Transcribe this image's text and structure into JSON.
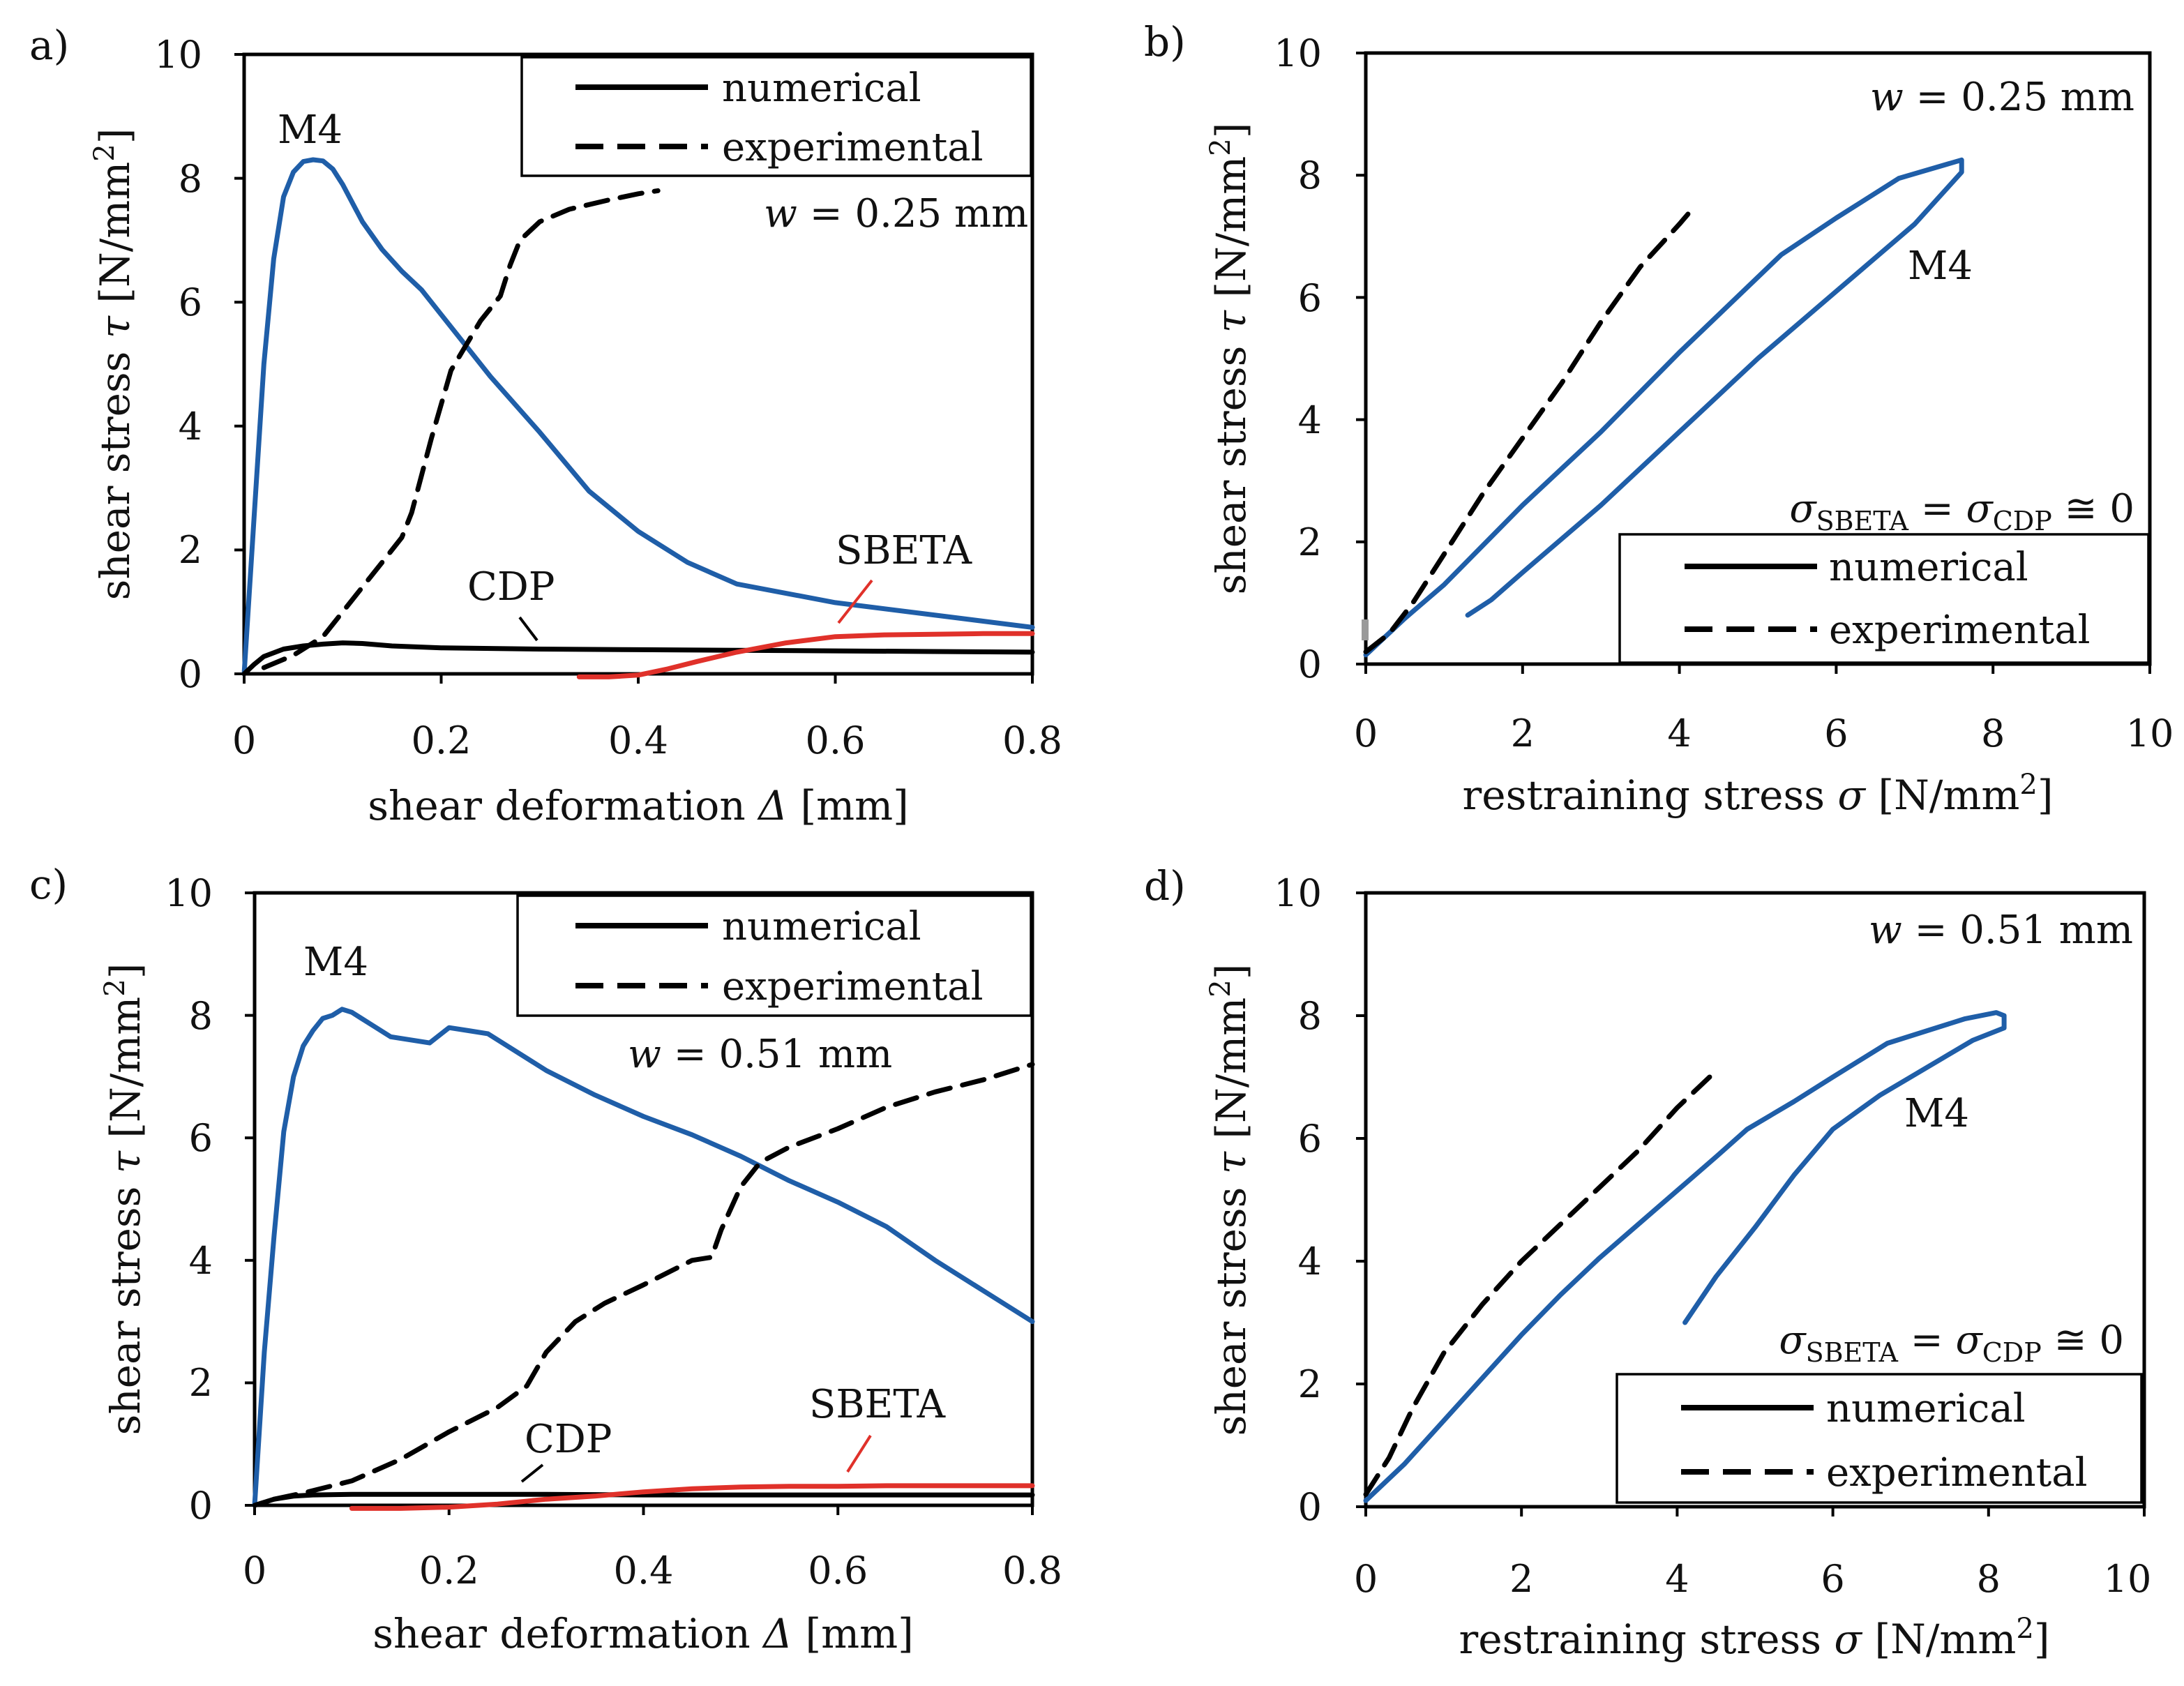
{
  "colors": {
    "numerical_m4": "#1f5ea8",
    "sbeta": "#e0312a",
    "cdp": "#000000",
    "experimental": "#000000"
  },
  "chart_data": [
    {
      "id": "a",
      "panel_label": "a)",
      "type": "line",
      "xlabel_main": "shear deformation",
      "xlabel_symbol": "Δ",
      "xlabel_unit": "[mm]",
      "ylabel_main": "shear stress",
      "ylabel_symbol": "τ",
      "ylabel_unit": "[N/mm",
      "ylabel_unit_sup": "2",
      "ylabel_unit_close": "]",
      "xlim": [
        0,
        0.8
      ],
      "ylim": [
        0,
        10
      ],
      "xticks": [
        0,
        0.2,
        0.4,
        0.6,
        0.8
      ],
      "xtick_labels": [
        "0",
        "0.2",
        "0.4",
        "0.6",
        "0.8"
      ],
      "yticks": [
        0,
        2,
        4,
        6,
        8,
        10
      ],
      "ytick_labels": [
        "0",
        "2",
        "4",
        "6",
        "8",
        "10"
      ],
      "legend": {
        "position": "top-right",
        "entries": [
          {
            "label": "numerical",
            "style": "solid"
          },
          {
            "label": "experimental",
            "style": "dashed"
          }
        ]
      },
      "annotations": {
        "w_symbol": "w",
        "w_text": "= 0.25 mm",
        "m4": "M4",
        "cdp": "CDP",
        "sbeta": "SBETA"
      },
      "series": [
        {
          "name": "M4 numerical",
          "style": "solid",
          "color": "#1f5ea8",
          "x": [
            0,
            0.01,
            0.02,
            0.03,
            0.04,
            0.05,
            0.06,
            0.07,
            0.08,
            0.09,
            0.1,
            0.12,
            0.14,
            0.16,
            0.18,
            0.2,
            0.25,
            0.3,
            0.35,
            0.4,
            0.45,
            0.5,
            0.6,
            0.7,
            0.8
          ],
          "y": [
            0,
            2.5,
            5.0,
            6.7,
            7.7,
            8.1,
            8.27,
            8.3,
            8.28,
            8.15,
            7.9,
            7.3,
            6.85,
            6.5,
            6.2,
            5.8,
            4.8,
            3.9,
            2.95,
            2.3,
            1.8,
            1.45,
            1.15,
            0.95,
            0.75
          ]
        },
        {
          "name": "experimental",
          "style": "dashed",
          "color": "#000000",
          "x": [
            0.02,
            0.05,
            0.08,
            0.11,
            0.14,
            0.16,
            0.17,
            0.19,
            0.21,
            0.24,
            0.26,
            0.27,
            0.28,
            0.3,
            0.33,
            0.37,
            0.4,
            0.42
          ],
          "y": [
            0.1,
            0.3,
            0.6,
            1.2,
            1.8,
            2.2,
            2.6,
            3.8,
            4.9,
            5.7,
            6.1,
            6.6,
            7.0,
            7.3,
            7.5,
            7.65,
            7.75,
            7.8
          ]
        },
        {
          "name": "CDP numerical",
          "style": "solid",
          "color": "#000000",
          "x": [
            0,
            0.01,
            0.02,
            0.04,
            0.06,
            0.08,
            0.1,
            0.12,
            0.15,
            0.2,
            0.3,
            0.4,
            0.5,
            0.6,
            0.7,
            0.8
          ],
          "y": [
            0,
            0.15,
            0.28,
            0.4,
            0.45,
            0.48,
            0.5,
            0.49,
            0.45,
            0.42,
            0.4,
            0.39,
            0.38,
            0.37,
            0.36,
            0.35
          ]
        },
        {
          "name": "SBETA numerical",
          "style": "solid",
          "color": "#e0312a",
          "x": [
            0.34,
            0.37,
            0.4,
            0.43,
            0.46,
            0.5,
            0.55,
            0.6,
            0.65,
            0.7,
            0.75,
            0.8
          ],
          "y": [
            -0.05,
            -0.05,
            -0.02,
            0.08,
            0.2,
            0.35,
            0.5,
            0.6,
            0.63,
            0.64,
            0.65,
            0.65
          ]
        }
      ]
    },
    {
      "id": "b",
      "panel_label": "b)",
      "type": "line",
      "xlabel_main": "restraining stress",
      "xlabel_symbol": "σ",
      "xlabel_unit": "[N/mm",
      "xlabel_unit_sup": "2",
      "xlabel_unit_close": "]",
      "ylabel_main": "shear stress",
      "ylabel_symbol": "τ",
      "ylabel_unit": "[N/mm",
      "ylabel_unit_sup": "2",
      "ylabel_unit_close": "]",
      "xlim": [
        0,
        10
      ],
      "ylim": [
        0,
        10
      ],
      "xticks": [
        0,
        2,
        4,
        6,
        8,
        10
      ],
      "xtick_labels": [
        "0",
        "2",
        "4",
        "6",
        "8",
        "10"
      ],
      "yticks": [
        0,
        2,
        4,
        6,
        8,
        10
      ],
      "ytick_labels": [
        "0",
        "2",
        "4",
        "6",
        "8",
        "10"
      ],
      "legend": {
        "position": "bottom-right",
        "entries": [
          {
            "label": "numerical",
            "style": "solid"
          },
          {
            "label": "experimental",
            "style": "dashed"
          }
        ]
      },
      "annotations": {
        "w_symbol": "w",
        "w_text": "= 0.25 mm",
        "m4": "M4",
        "sigma_eq": "σ",
        "sigma_sub1": "SBETA",
        "sigma_eq2": " = σ",
        "sigma_sub2": "CDP",
        "sigma_tail": " ≅ 0"
      },
      "series": [
        {
          "name": "M4 numerical",
          "style": "solid",
          "color": "#1f5ea8",
          "x": [
            0,
            0.5,
            1.0,
            2.0,
            3.0,
            4.0,
            5.3,
            6.0,
            6.8,
            7.6,
            7.6,
            7.0,
            6.0,
            5.0,
            4.0,
            3.0,
            2.0,
            1.6,
            1.3
          ],
          "y": [
            0.15,
            0.75,
            1.3,
            2.6,
            3.8,
            5.1,
            6.7,
            7.3,
            7.95,
            8.25,
            8.05,
            7.2,
            6.1,
            5.0,
            3.8,
            2.6,
            1.5,
            1.05,
            0.8
          ]
        },
        {
          "name": "experimental",
          "style": "dashed",
          "color": "#000000",
          "x": [
            0,
            0.3,
            0.6,
            1.0,
            1.5,
            2.0,
            2.5,
            3.0,
            3.5,
            4.0,
            4.2
          ],
          "y": [
            0.2,
            0.5,
            1.0,
            1.8,
            2.8,
            3.7,
            4.6,
            5.6,
            6.5,
            7.2,
            7.5
          ]
        }
      ]
    },
    {
      "id": "c",
      "panel_label": "c)",
      "type": "line",
      "xlabel_main": "shear deformation",
      "xlabel_symbol": "Δ",
      "xlabel_unit": "[mm]",
      "ylabel_main": "shear stress",
      "ylabel_symbol": "τ",
      "ylabel_unit": "[N/mm",
      "ylabel_unit_sup": "2",
      "ylabel_unit_close": "]",
      "xlim": [
        0,
        0.8
      ],
      "ylim": [
        0,
        10
      ],
      "xticks": [
        0,
        0.2,
        0.4,
        0.6,
        0.8
      ],
      "xtick_labels": [
        "0",
        "0.2",
        "0.4",
        "0.6",
        "0.8"
      ],
      "yticks": [
        0,
        2,
        4,
        6,
        8,
        10
      ],
      "ytick_labels": [
        "0",
        "2",
        "4",
        "6",
        "8",
        "10"
      ],
      "legend": {
        "position": "top-right",
        "entries": [
          {
            "label": "numerical",
            "style": "solid"
          },
          {
            "label": "experimental",
            "style": "dashed"
          }
        ]
      },
      "annotations": {
        "w_symbol": "w",
        "w_text": "= 0.51 mm",
        "m4": "M4",
        "cdp": "CDP",
        "sbeta": "SBETA"
      },
      "series": [
        {
          "name": "M4 numerical",
          "style": "solid",
          "color": "#1f5ea8",
          "x": [
            0,
            0.01,
            0.02,
            0.03,
            0.04,
            0.05,
            0.06,
            0.07,
            0.08,
            0.09,
            0.1,
            0.11,
            0.12,
            0.14,
            0.16,
            0.18,
            0.2,
            0.22,
            0.24,
            0.3,
            0.35,
            0.4,
            0.45,
            0.5,
            0.55,
            0.6,
            0.65,
            0.7,
            0.75,
            0.8
          ],
          "y": [
            0,
            2.5,
            4.4,
            6.1,
            7.0,
            7.5,
            7.75,
            7.95,
            8.0,
            8.1,
            8.05,
            7.95,
            7.85,
            7.65,
            7.6,
            7.55,
            7.8,
            7.75,
            7.7,
            7.1,
            6.7,
            6.35,
            6.05,
            5.7,
            5.3,
            4.95,
            4.55,
            4.0,
            3.5,
            3.0
          ]
        },
        {
          "name": "experimental",
          "style": "dashed",
          "color": "#000000",
          "x": [
            0.02,
            0.05,
            0.1,
            0.15,
            0.2,
            0.25,
            0.28,
            0.3,
            0.33,
            0.36,
            0.4,
            0.45,
            0.47,
            0.48,
            0.5,
            0.52,
            0.55,
            0.6,
            0.65,
            0.7,
            0.75,
            0.8
          ],
          "y": [
            0.1,
            0.2,
            0.4,
            0.75,
            1.2,
            1.6,
            1.95,
            2.5,
            3.0,
            3.3,
            3.6,
            4.0,
            4.05,
            4.5,
            5.2,
            5.6,
            5.85,
            6.15,
            6.5,
            6.75,
            6.95,
            7.2
          ]
        },
        {
          "name": "CDP numerical",
          "style": "solid",
          "color": "#000000",
          "x": [
            0,
            0.01,
            0.02,
            0.04,
            0.06,
            0.1,
            0.2,
            0.3,
            0.4,
            0.5,
            0.6,
            0.7,
            0.8
          ],
          "y": [
            0,
            0.05,
            0.1,
            0.15,
            0.17,
            0.18,
            0.18,
            0.18,
            0.17,
            0.17,
            0.17,
            0.17,
            0.17
          ]
        },
        {
          "name": "SBETA numerical",
          "style": "solid",
          "color": "#e0312a",
          "x": [
            0.1,
            0.15,
            0.2,
            0.25,
            0.3,
            0.35,
            0.4,
            0.45,
            0.5,
            0.55,
            0.6,
            0.65,
            0.7,
            0.75,
            0.8
          ],
          "y": [
            -0.05,
            -0.05,
            -0.03,
            0.02,
            0.1,
            0.15,
            0.22,
            0.27,
            0.3,
            0.31,
            0.31,
            0.32,
            0.32,
            0.32,
            0.32
          ]
        }
      ]
    },
    {
      "id": "d",
      "panel_label": "d)",
      "type": "line",
      "xlabel_main": "restraining stress",
      "xlabel_symbol": "σ",
      "xlabel_unit": "[N/mm",
      "xlabel_unit_sup": "2",
      "xlabel_unit_close": "]",
      "ylabel_main": "shear stress",
      "ylabel_symbol": "τ",
      "ylabel_unit": "[N/mm",
      "ylabel_unit_sup": "2",
      "ylabel_unit_close": "]",
      "xlim": [
        0,
        10
      ],
      "ylim": [
        0,
        10
      ],
      "xticks": [
        0,
        2,
        4,
        6,
        8,
        10
      ],
      "xtick_labels": [
        "0",
        "2",
        "4",
        "6",
        "8",
        "10"
      ],
      "yticks": [
        0,
        2,
        4,
        6,
        8,
        10
      ],
      "ytick_labels": [
        "0",
        "2",
        "4",
        "6",
        "8",
        "10"
      ],
      "legend": {
        "position": "bottom-right",
        "entries": [
          {
            "label": "numerical",
            "style": "solid"
          },
          {
            "label": "experimental",
            "style": "dashed"
          }
        ]
      },
      "annotations": {
        "w_symbol": "w",
        "w_text": "= 0.51 mm",
        "m4": "M4",
        "sigma_eq": "σ",
        "sigma_sub1": "SBETA",
        "sigma_eq2": " = σ",
        "sigma_sub2": "CDP",
        "sigma_tail": " ≅ 0"
      },
      "series": [
        {
          "name": "M4 numerical",
          "style": "solid",
          "color": "#1f5ea8",
          "x": [
            0,
            0.5,
            1.0,
            1.5,
            2.0,
            2.5,
            3.0,
            3.5,
            4.0,
            4.5,
            4.9,
            5.5,
            6.0,
            6.7,
            7.2,
            7.7,
            8.1,
            8.2,
            8.2,
            7.8,
            7.4,
            7.0,
            6.6,
            6.0,
            5.5,
            5.0,
            4.5,
            4.1
          ],
          "y": [
            0.1,
            0.7,
            1.4,
            2.1,
            2.8,
            3.45,
            4.05,
            4.6,
            5.15,
            5.7,
            6.15,
            6.6,
            7.0,
            7.55,
            7.75,
            7.95,
            8.05,
            8.0,
            7.8,
            7.6,
            7.3,
            7.0,
            6.7,
            6.15,
            5.4,
            4.55,
            3.75,
            3.0
          ]
        },
        {
          "name": "experimental",
          "style": "dashed",
          "color": "#000000",
          "x": [
            0,
            0.3,
            0.6,
            1.0,
            1.5,
            2.0,
            2.5,
            3.0,
            3.5,
            4.0,
            4.5
          ],
          "y": [
            0.2,
            0.8,
            1.6,
            2.5,
            3.3,
            4.0,
            4.6,
            5.2,
            5.8,
            6.5,
            7.1
          ]
        }
      ]
    }
  ]
}
